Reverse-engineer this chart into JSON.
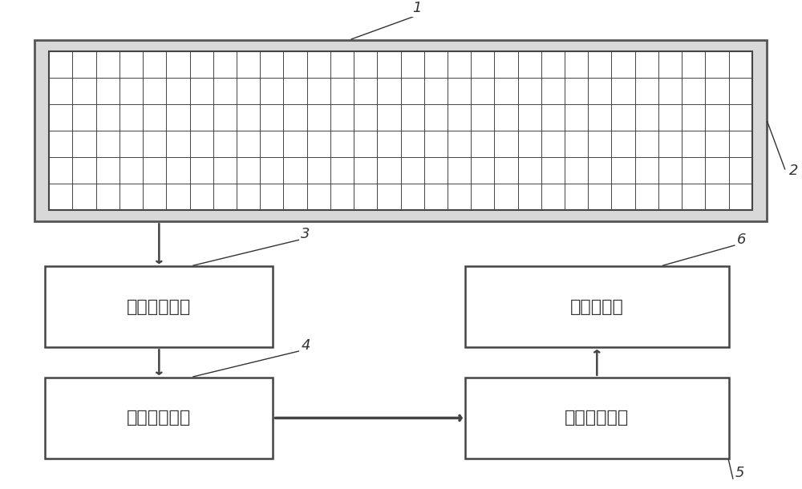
{
  "bg_color": "#ffffff",
  "grid_color": "#444444",
  "box_color": "#ffffff",
  "box_edge_color": "#444444",
  "arrow_color": "#444444",
  "label_color": "#333333",
  "font_size_box": 16,
  "font_size_label": 13,
  "grid_rows": 6,
  "grid_cols": 30,
  "sensor_label": "1",
  "outer_rect_label": "2",
  "box1_text": "数据采集模块",
  "box1_label": "3",
  "box2_text": "数据传输模块",
  "box2_label": "4",
  "box3_text": "外围处理设备",
  "box3_label": "5",
  "box4_text": "客户端软件",
  "box4_label": "6"
}
